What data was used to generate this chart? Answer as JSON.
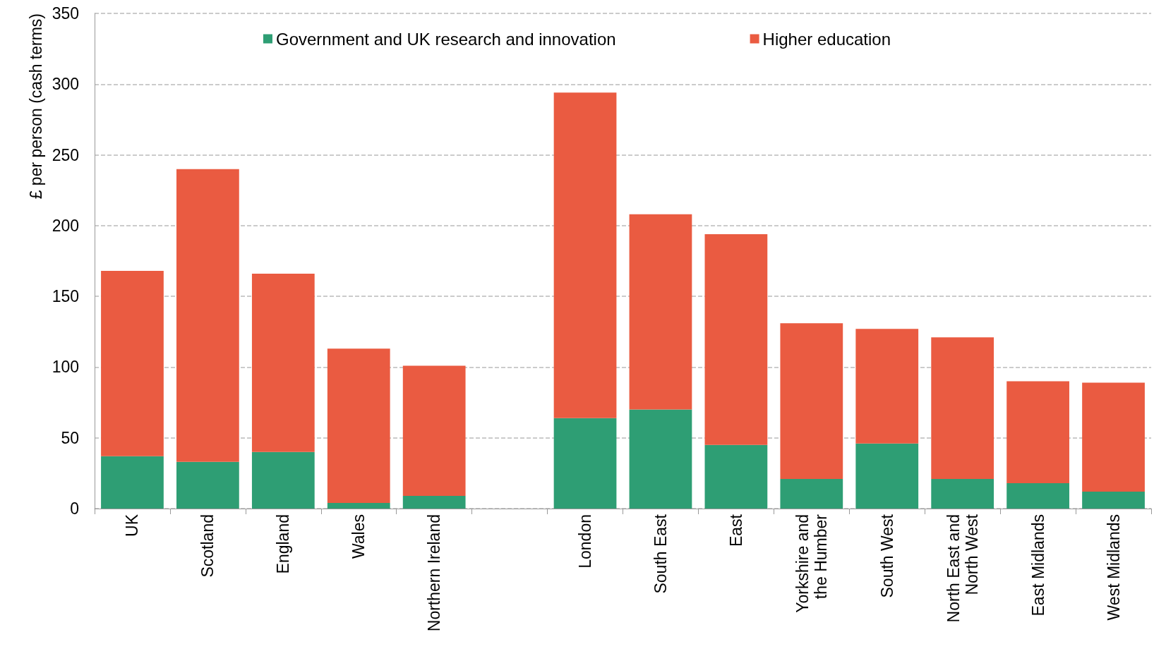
{
  "chart_data": {
    "type": "bar",
    "ylabel": "£ per person (cash terms)",
    "categories": [
      "UK",
      "Scotland",
      "England",
      "Wales",
      "Northern Ireland",
      null,
      "London",
      "South East",
      "East",
      "Yorkshire and\nthe Humber",
      "South West",
      "North East and\nNorth West",
      "East Midlands",
      "West Midlands"
    ],
    "series": [
      {
        "name": "Government and UK research and innovation",
        "color": "#2e9e74",
        "values": [
          37,
          33,
          40,
          4,
          9,
          null,
          64,
          70,
          45,
          21,
          46,
          21,
          18,
          12
        ]
      },
      {
        "name": "Higher education",
        "color": "#ea5b41",
        "values": [
          131,
          207,
          126,
          109,
          92,
          null,
          230,
          138,
          149,
          110,
          81,
          100,
          72,
          77
        ]
      }
    ],
    "stacked": true,
    "ylim": [
      0,
      350
    ],
    "yticks": [
      0,
      50,
      100,
      150,
      200,
      250,
      300,
      350
    ],
    "grid": "y",
    "legend": "top"
  }
}
